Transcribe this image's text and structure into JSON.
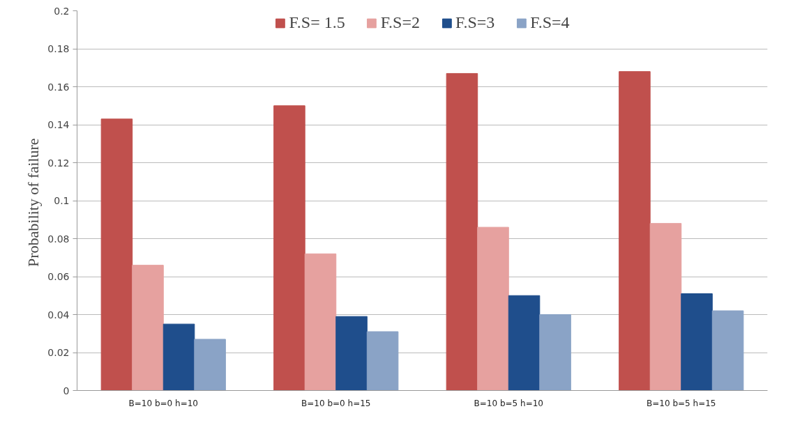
{
  "chart_data": {
    "type": "bar",
    "ylabel": "Probability  of failure",
    "categories": [
      "B=10 b=0 h=10",
      "B=10 b=0 h=15",
      "B=10 b=5 h=10",
      "B=10 b=5 h=15"
    ],
    "series": [
      {
        "name": "F.S= 1.5",
        "color": "#c0504d",
        "values": [
          0.143,
          0.15,
          0.167,
          0.168
        ]
      },
      {
        "name": "F.S=2",
        "color": "#e6a19f",
        "values": [
          0.066,
          0.072,
          0.086,
          0.088
        ]
      },
      {
        "name": "F.S=3",
        "color": "#1f4e8c",
        "values": [
          0.035,
          0.039,
          0.05,
          0.051
        ]
      },
      {
        "name": "F.S=4",
        "color": "#8aa3c6",
        "values": [
          0.027,
          0.031,
          0.04,
          0.042
        ]
      }
    ],
    "ylim": [
      0,
      0.2
    ],
    "yticks": [
      0,
      0.02,
      0.04,
      0.06,
      0.08,
      0.1,
      0.12,
      0.14,
      0.16,
      0.18,
      0.2
    ],
    "grid": "y",
    "legend": "top"
  }
}
